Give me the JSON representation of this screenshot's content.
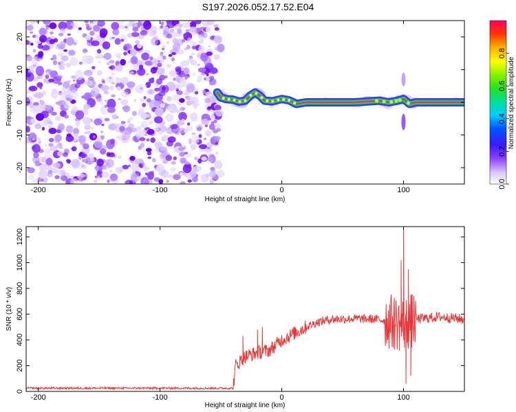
{
  "title": "S197.2026.052.17.52.E04",
  "chart_data": [
    {
      "type": "heatmap",
      "name": "spectrogram",
      "xlabel": "Height of straight line (km)",
      "ylabel": "Frequency (Hz)",
      "xlim": [
        -210,
        150
      ],
      "ylim": [
        -25,
        25
      ],
      "xticks": [
        -200,
        -100,
        0,
        100
      ],
      "yticks": [
        -20,
        -10,
        0,
        10,
        20
      ],
      "noise_region_x": [
        -210,
        -50
      ],
      "signal_track": [
        {
          "x": -53,
          "f": 3.0
        },
        {
          "x": -50,
          "f": 1.5
        },
        {
          "x": -46,
          "f": 1.0
        },
        {
          "x": -40,
          "f": 0.8
        },
        {
          "x": -35,
          "f": 0.2
        },
        {
          "x": -30,
          "f": 0.5
        },
        {
          "x": -26,
          "f": 2.0
        },
        {
          "x": -22,
          "f": 3.0
        },
        {
          "x": -18,
          "f": 2.0
        },
        {
          "x": -14,
          "f": 0.5
        },
        {
          "x": -8,
          "f": 0.3
        },
        {
          "x": 0,
          "f": 1.0
        },
        {
          "x": 6,
          "f": 0.6
        },
        {
          "x": 12,
          "f": -0.5
        },
        {
          "x": 20,
          "f": 0.0
        },
        {
          "x": 60,
          "f": 0.0
        },
        {
          "x": 80,
          "f": 0.5
        },
        {
          "x": 88,
          "f": 0.0
        },
        {
          "x": 95,
          "f": 0.5
        },
        {
          "x": 100,
          "f": 1.0
        },
        {
          "x": 105,
          "f": -0.5
        },
        {
          "x": 110,
          "f": 0.0
        },
        {
          "x": 150,
          "f": 0.0
        }
      ],
      "colorbar": {
        "label": "Normalized spectral amplitude",
        "range": [
          0,
          1
        ],
        "ticks": [
          "0.0",
          "0.2",
          "0.4",
          "0.6",
          "0.8"
        ]
      }
    },
    {
      "type": "line",
      "name": "snr",
      "xlabel": "Height of straight line (km)",
      "ylabel": "SNR (10 * v/v)",
      "xlim": [
        -210,
        150
      ],
      "ylim": [
        0,
        1280
      ],
      "xticks": [
        -200,
        -100,
        0,
        100
      ],
      "yticks": [
        0,
        200,
        400,
        600,
        800,
        1000,
        1200
      ],
      "color": "#ee3333",
      "trend": [
        {
          "x": -210,
          "y": 25
        },
        {
          "x": -40,
          "y": 25
        },
        {
          "x": -38,
          "y": 200
        },
        {
          "x": -30,
          "y": 270
        },
        {
          "x": -20,
          "y": 300
        },
        {
          "x": -10,
          "y": 320
        },
        {
          "x": 0,
          "y": 400
        },
        {
          "x": 10,
          "y": 450
        },
        {
          "x": 20,
          "y": 500
        },
        {
          "x": 30,
          "y": 540
        },
        {
          "x": 40,
          "y": 560
        },
        {
          "x": 60,
          "y": 565
        },
        {
          "x": 80,
          "y": 560
        },
        {
          "x": 90,
          "y": 540
        },
        {
          "x": 100,
          "y": 520
        },
        {
          "x": 110,
          "y": 560
        },
        {
          "x": 130,
          "y": 580
        },
        {
          "x": 150,
          "y": 560
        }
      ],
      "spikes": [
        {
          "x": -32,
          "y": 430
        },
        {
          "x": -20,
          "y": 480
        },
        {
          "x": -16,
          "y": 500
        },
        {
          "x": 98,
          "y": 1020
        },
        {
          "x": 100,
          "y": 1280
        },
        {
          "x": 102,
          "y": 60
        },
        {
          "x": 104,
          "y": 950
        },
        {
          "x": 106,
          "y": 120
        }
      ]
    }
  ]
}
